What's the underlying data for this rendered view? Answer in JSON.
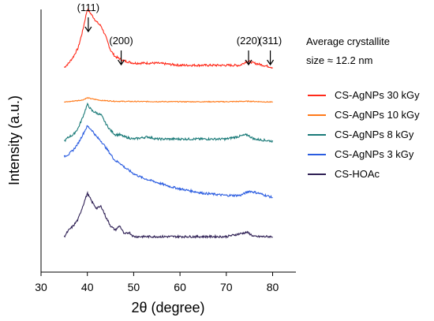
{
  "chart_data": {
    "type": "line",
    "title": "",
    "xlabel": "2θ (degree)",
    "ylabel": "Intensity (a.u.)",
    "xlim": [
      30,
      85
    ],
    "xticks": [
      30,
      40,
      50,
      60,
      70,
      80
    ],
    "grid": false,
    "legend_position": "right",
    "series": [
      {
        "name": "CS-AgNPs 30 kGy",
        "color": "#ff2a1a",
        "offset": 0.78,
        "x": [
          35.0,
          36.0,
          37.0,
          38.0,
          39.0,
          40.0,
          41.0,
          42.0,
          43.0,
          44.0,
          45.0,
          46.0,
          47.0,
          48.0,
          50.0,
          52.0,
          55.0,
          60.0,
          65.0,
          70.0,
          73.0,
          74.5,
          76.0,
          78.0,
          80.0
        ],
        "y": [
          0.0,
          0.02,
          0.05,
          0.09,
          0.17,
          0.27,
          0.24,
          0.21,
          0.19,
          0.14,
          0.08,
          0.05,
          0.04,
          0.03,
          0.02,
          0.02,
          0.02,
          0.01,
          0.01,
          0.01,
          0.01,
          0.03,
          0.02,
          0.01,
          0.0
        ]
      },
      {
        "name": "CS-AgNPs 10 kGy",
        "color": "#ff7a1a",
        "offset": 0.62,
        "x": [
          35.0,
          37.0,
          39.0,
          40.0,
          41.0,
          43.0,
          46.0,
          50.0,
          60.0,
          70.0,
          75.0,
          80.0
        ],
        "y": [
          0.0,
          0.005,
          0.01,
          0.02,
          0.015,
          0.008,
          0.004,
          0.003,
          0.002,
          0.002,
          0.004,
          0.0
        ]
      },
      {
        "name": "CS-AgNPs 8 kGy",
        "color": "#1a7a78",
        "offset": 0.44,
        "x": [
          35.0,
          36.0,
          37.0,
          38.0,
          39.0,
          40.0,
          41.0,
          42.0,
          43.0,
          44.0,
          45.0,
          46.0,
          47.0,
          48.0,
          50.0,
          53.0,
          55.0,
          60.0,
          65.0,
          70.0,
          74.5,
          76.0,
          80.0
        ],
        "y": [
          0.0,
          0.02,
          0.03,
          0.06,
          0.11,
          0.17,
          0.14,
          0.13,
          0.12,
          0.08,
          0.05,
          0.03,
          0.03,
          0.02,
          0.01,
          0.02,
          0.01,
          0.01,
          0.01,
          0.01,
          0.03,
          0.01,
          0.0
        ]
      },
      {
        "name": "CS-AgNPs 3 kGy",
        "color": "#2a5ce0",
        "offset": 0.2,
        "x": [
          35.0,
          36.0,
          37.0,
          38.0,
          39.0,
          40.0,
          41.0,
          42.0,
          43.0,
          44.0,
          45.0,
          46.0,
          47.0,
          48.0,
          50.0,
          52.0,
          55.0,
          58.0,
          60.0,
          65.0,
          70.0,
          73.0,
          75.0,
          77.0,
          80.0
        ],
        "y": [
          0.17,
          0.18,
          0.2,
          0.23,
          0.27,
          0.31,
          0.29,
          0.26,
          0.24,
          0.21,
          0.18,
          0.15,
          0.14,
          0.12,
          0.09,
          0.07,
          0.05,
          0.03,
          0.02,
          0.0,
          -0.01,
          -0.01,
          0.01,
          0.0,
          -0.02
        ]
      },
      {
        "name": "CS-HOAc",
        "color": "#2e1f54",
        "offset": 0.0,
        "x": [
          35.0,
          36.0,
          37.0,
          38.0,
          39.0,
          40.0,
          41.0,
          42.0,
          43.0,
          44.0,
          45.0,
          46.0,
          47.0,
          48.0,
          49.0,
          50.0,
          52.0,
          55.0,
          60.0,
          65.0,
          70.0,
          74.5,
          76.0,
          80.0
        ],
        "y": [
          0.0,
          0.03,
          0.05,
          0.08,
          0.14,
          0.2,
          0.16,
          0.13,
          0.14,
          0.09,
          0.05,
          0.03,
          0.05,
          0.01,
          0.02,
          0.0,
          0.0,
          0.0,
          0.0,
          0.0,
          0.0,
          0.02,
          0.0,
          0.0
        ]
      }
    ],
    "annotations": [
      {
        "text": "(111)",
        "x": 40.2,
        "target_series": 0
      },
      {
        "text": "(200)",
        "x": 47.3,
        "target_series": 0
      },
      {
        "text": "(220)",
        "x": 74.8,
        "target_series": 0
      },
      {
        "text": "(311)",
        "x": 79.5,
        "target_series": 0
      }
    ],
    "note_lines": [
      "Average crystallite",
      "size ≈ 12.2 nm"
    ]
  }
}
